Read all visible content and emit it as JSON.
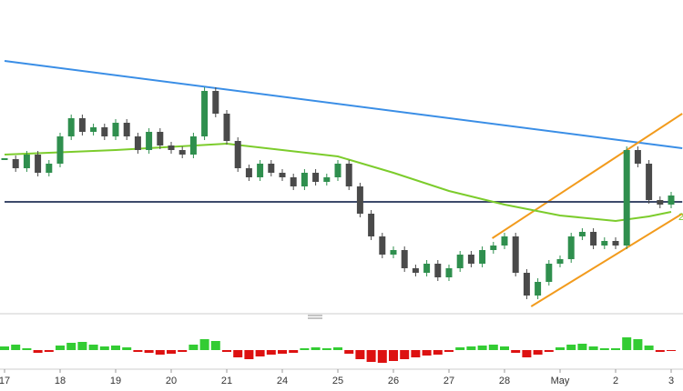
{
  "chart_data": {
    "type": "candlestick",
    "categories": [
      "17",
      null,
      null,
      null,
      null,
      "18",
      null,
      null,
      null,
      null,
      "19",
      null,
      null,
      null,
      null,
      "20",
      null,
      null,
      null,
      null,
      "21",
      null,
      null,
      null,
      null,
      "24",
      null,
      null,
      null,
      null,
      "25",
      null,
      null,
      null,
      null,
      "26",
      null,
      null,
      null,
      null,
      "27",
      null,
      null,
      null,
      null,
      "28",
      null,
      null,
      null,
      null,
      "May",
      null,
      null,
      null,
      null,
      "2",
      null,
      null,
      null,
      null,
      "3"
    ],
    "close": [
      165,
      155,
      170,
      150,
      160,
      190,
      210,
      195,
      200,
      190,
      205,
      190,
      175,
      195,
      180,
      175,
      170,
      190,
      240,
      215,
      185,
      155,
      145,
      160,
      150,
      145,
      135,
      150,
      140,
      145,
      160,
      135,
      105,
      80,
      60,
      65,
      45,
      40,
      50,
      35,
      45,
      60,
      50,
      65,
      70,
      80,
      40,
      15,
      30,
      50,
      55,
      80,
      85,
      70,
      75,
      70,
      175,
      160,
      120,
      115,
      125
    ],
    "up_color": "#2f8f4e",
    "down_color": "#4a4a4a",
    "ylim": [
      0,
      340
    ],
    "overlays": [
      {
        "color": "#3a8ee6",
        "x": [
          0,
          61
        ],
        "values": [
          273,
          177
        ]
      },
      {
        "color": "#f29b1d",
        "x": [
          43.9,
          61
        ],
        "values": [
          78,
          215
        ]
      },
      {
        "color": "#f29b1d",
        "x": [
          47.4,
          61
        ],
        "values": [
          3,
          105
        ]
      },
      {
        "color": "#3d4a6b",
        "x": [
          0,
          61
        ],
        "values": [
          118,
          118
        ]
      },
      {
        "color": "#7ccc2c",
        "x": [
          0,
          10,
          20,
          25,
          30,
          35,
          40,
          45,
          50,
          55,
          58,
          60
        ],
        "values": [
          170,
          175,
          182,
          175,
          168,
          150,
          130,
          115,
          103,
          97,
          102,
          107
        ]
      }
    ],
    "ma_label": "2",
    "histogram": [
      4,
      6,
      2,
      -3,
      -2,
      5,
      8,
      9,
      6,
      4,
      5,
      3,
      -2,
      -3,
      -5,
      -4,
      -2,
      6,
      12,
      10,
      -2,
      -8,
      -10,
      -7,
      -5,
      -4,
      -3,
      2,
      3,
      2,
      3,
      -4,
      -10,
      -13,
      -14,
      -12,
      -10,
      -8,
      -6,
      -5,
      -2,
      3,
      4,
      5,
      6,
      4,
      -3,
      -8,
      -5,
      -2,
      3,
      6,
      7,
      4,
      2,
      2,
      14,
      12,
      5,
      -2,
      -1
    ],
    "histogram_ylim": [
      -20,
      20
    ],
    "histogram_colors": {
      "positive": "#33cc33",
      "negative": "#dd1111"
    }
  }
}
